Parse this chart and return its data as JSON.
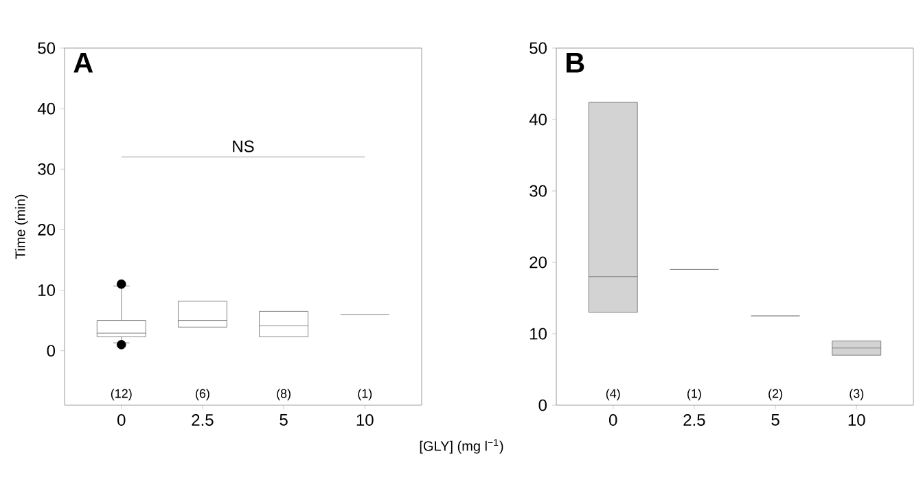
{
  "chart_data": [
    {
      "type": "box",
      "title": "A",
      "xlabel": "[GLY] (mg l$^{−1}$)",
      "ylabel": "Time (min)",
      "categories": [
        "0",
        "2.5",
        "5",
        "10"
      ],
      "ylim": [
        -9,
        50
      ],
      "yticks": [
        0,
        10,
        20,
        30,
        40,
        50
      ],
      "marker": "circle",
      "series": [
        {
          "color": "#ffffff",
          "boxes": [
            {
              "low": 1.3,
              "q1": 2.3,
              "median": 2.9,
              "q3": 5.0,
              "high": 10.7,
              "outliers": [
                11,
                1
              ]
            },
            {
              "low": 3.9,
              "q1": 3.9,
              "median": 5.0,
              "q3": 8.2,
              "high": 8.2
            },
            {
              "low": 2.3,
              "q1": 2.3,
              "median": 4.1,
              "q3": 6.5,
              "high": 6.5
            },
            {
              "low": 6.0,
              "q1": 6.0,
              "median": 6.0,
              "q3": 6.0,
              "high": 6.0
            }
          ]
        }
      ],
      "ref_lines": [
        {
          "axis": "y",
          "value": 32,
          "label": "NS",
          "color": "#808080"
        }
      ],
      "annotations": [
        "(12)",
        "(6)",
        "(8)",
        "(1)"
      ]
    },
    {
      "type": "box",
      "title": "B",
      "categories": [
        "0",
        "2.5",
        "5",
        "10"
      ],
      "ylim": [
        0,
        50
      ],
      "yticks": [
        0,
        10,
        20,
        30,
        40,
        50
      ],
      "series": [
        {
          "color": "#d3d3d3",
          "boxes": [
            {
              "low": 13,
              "q1": 13,
              "median": 18,
              "q3": 42.4,
              "high": 42.4
            },
            {
              "low": 19,
              "q1": 19,
              "median": 19,
              "q3": 19,
              "high": 19
            },
            {
              "low": 12.5,
              "q1": 12.5,
              "median": 12.5,
              "q3": 12.5,
              "high": 12.5
            },
            {
              "low": 7,
              "q1": 7,
              "median": 8,
              "q3": 9,
              "high": 9
            }
          ]
        }
      ],
      "annotations": [
        "(4)",
        "(1)",
        "(2)",
        "(3)"
      ]
    }
  ]
}
